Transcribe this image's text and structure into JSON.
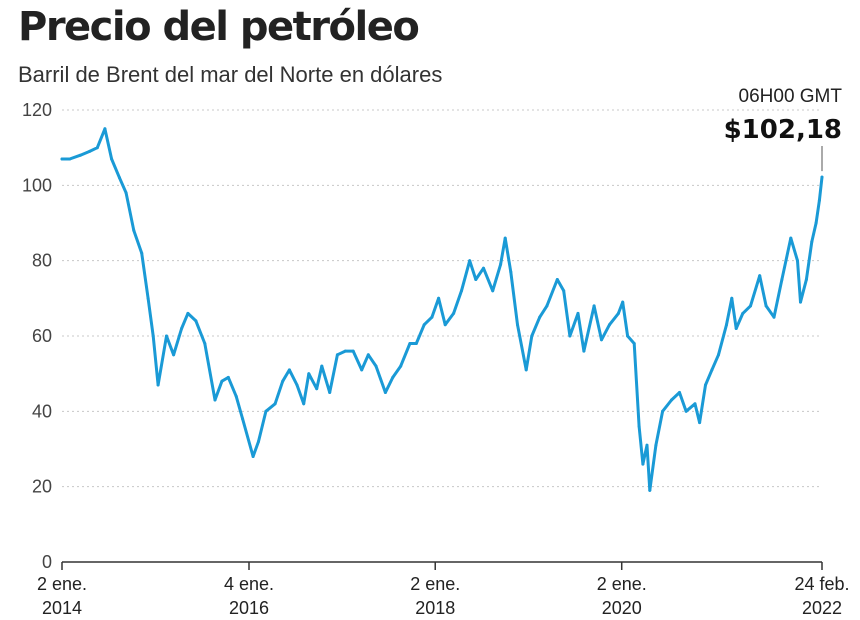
{
  "chart_data": {
    "type": "line",
    "title": "Precio del petróleo",
    "subtitle": "Barril de Brent del mar del Norte en dólares",
    "xlabel": "",
    "ylabel": "",
    "ylim": [
      0,
      120
    ],
    "y_ticks": [
      0,
      20,
      40,
      60,
      80,
      100,
      120
    ],
    "y_grid": true,
    "x_range": [
      "2014-01-02",
      "2022-02-24"
    ],
    "x_ticks": [
      {
        "date": "2014-01-02",
        "line1": "2 ene.",
        "line2": "2014"
      },
      {
        "date": "2016-01-04",
        "line1": "4 ene.",
        "line2": "2016"
      },
      {
        "date": "2018-01-02",
        "line1": "2 ene.",
        "line2": "2018"
      },
      {
        "date": "2020-01-02",
        "line1": "2 ene.",
        "line2": "2020"
      },
      {
        "date": "2022-02-24",
        "line1": "24 feb.",
        "line2": "2022"
      }
    ],
    "series": [
      {
        "color": "#1a9ad6",
        "points": [
          [
            "2014-01-02",
            107
          ],
          [
            "2014-02-01",
            107
          ],
          [
            "2014-03-15",
            108
          ],
          [
            "2014-04-20",
            109
          ],
          [
            "2014-05-20",
            110
          ],
          [
            "2014-06-19",
            115
          ],
          [
            "2014-07-15",
            107
          ],
          [
            "2014-08-15",
            102
          ],
          [
            "2014-09-10",
            98
          ],
          [
            "2014-10-10",
            88
          ],
          [
            "2014-11-10",
            82
          ],
          [
            "2014-12-05",
            70
          ],
          [
            "2014-12-25",
            60
          ],
          [
            "2015-01-13",
            47
          ],
          [
            "2015-02-15",
            60
          ],
          [
            "2015-03-15",
            55
          ],
          [
            "2015-04-15",
            62
          ],
          [
            "2015-05-10",
            66
          ],
          [
            "2015-06-10",
            64
          ],
          [
            "2015-07-15",
            58
          ],
          [
            "2015-08-24",
            43
          ],
          [
            "2015-09-20",
            48
          ],
          [
            "2015-10-15",
            49
          ],
          [
            "2015-11-15",
            44
          ],
          [
            "2015-12-10",
            38
          ],
          [
            "2016-01-20",
            28
          ],
          [
            "2016-02-10",
            32
          ],
          [
            "2016-03-10",
            40
          ],
          [
            "2016-04-15",
            42
          ],
          [
            "2016-05-15",
            48
          ],
          [
            "2016-06-10",
            51
          ],
          [
            "2016-07-10",
            47
          ],
          [
            "2016-08-05",
            42
          ],
          [
            "2016-08-25",
            50
          ],
          [
            "2016-09-25",
            46
          ],
          [
            "2016-10-15",
            52
          ],
          [
            "2016-11-15",
            45
          ],
          [
            "2016-12-15",
            55
          ],
          [
            "2017-01-15",
            56
          ],
          [
            "2017-02-15",
            56
          ],
          [
            "2017-03-20",
            51
          ],
          [
            "2017-04-15",
            55
          ],
          [
            "2017-05-15",
            52
          ],
          [
            "2017-06-21",
            45
          ],
          [
            "2017-07-20",
            49
          ],
          [
            "2017-08-20",
            52
          ],
          [
            "2017-09-25",
            58
          ],
          [
            "2017-10-20",
            58
          ],
          [
            "2017-11-20",
            63
          ],
          [
            "2017-12-20",
            65
          ],
          [
            "2018-01-15",
            70
          ],
          [
            "2018-02-10",
            63
          ],
          [
            "2018-03-15",
            66
          ],
          [
            "2018-04-15",
            72
          ],
          [
            "2018-05-17",
            80
          ],
          [
            "2018-06-10",
            75
          ],
          [
            "2018-07-10",
            78
          ],
          [
            "2018-08-15",
            72
          ],
          [
            "2018-09-15",
            79
          ],
          [
            "2018-10-03",
            86
          ],
          [
            "2018-10-25",
            77
          ],
          [
            "2018-11-20",
            63
          ],
          [
            "2018-12-24",
            51
          ],
          [
            "2019-01-15",
            60
          ],
          [
            "2019-02-15",
            65
          ],
          [
            "2019-03-15",
            68
          ],
          [
            "2019-04-25",
            75
          ],
          [
            "2019-05-20",
            72
          ],
          [
            "2019-06-13",
            60
          ],
          [
            "2019-07-15",
            66
          ],
          [
            "2019-08-07",
            56
          ],
          [
            "2019-09-16",
            68
          ],
          [
            "2019-10-15",
            59
          ],
          [
            "2019-11-15",
            63
          ],
          [
            "2019-12-20",
            66
          ],
          [
            "2020-01-06",
            69
          ],
          [
            "2020-01-25",
            60
          ],
          [
            "2020-02-20",
            58
          ],
          [
            "2020-03-10",
            36
          ],
          [
            "2020-03-25",
            26
          ],
          [
            "2020-04-10",
            31
          ],
          [
            "2020-04-21",
            19
          ],
          [
            "2020-05-15",
            31
          ],
          [
            "2020-06-10",
            40
          ],
          [
            "2020-07-15",
            43
          ],
          [
            "2020-08-15",
            45
          ],
          [
            "2020-09-10",
            40
          ],
          [
            "2020-10-15",
            42
          ],
          [
            "2020-11-02",
            37
          ],
          [
            "2020-11-25",
            47
          ],
          [
            "2020-12-20",
            51
          ],
          [
            "2021-01-15",
            55
          ],
          [
            "2021-02-15",
            63
          ],
          [
            "2021-03-08",
            70
          ],
          [
            "2021-03-25",
            62
          ],
          [
            "2021-04-20",
            66
          ],
          [
            "2021-05-20",
            68
          ],
          [
            "2021-06-25",
            76
          ],
          [
            "2021-07-20",
            68
          ],
          [
            "2021-08-20",
            65
          ],
          [
            "2021-09-20",
            75
          ],
          [
            "2021-10-25",
            86
          ],
          [
            "2021-11-20",
            80
          ],
          [
            "2021-12-02",
            69
          ],
          [
            "2021-12-25",
            75
          ],
          [
            "2022-01-15",
            85
          ],
          [
            "2022-02-01",
            90
          ],
          [
            "2022-02-14",
            96
          ],
          [
            "2022-02-24",
            102.18
          ]
        ]
      }
    ],
    "annotation": {
      "time": "06H00 GMT",
      "value": "$102,18",
      "x": "2022-02-24",
      "y": 102.18
    }
  }
}
